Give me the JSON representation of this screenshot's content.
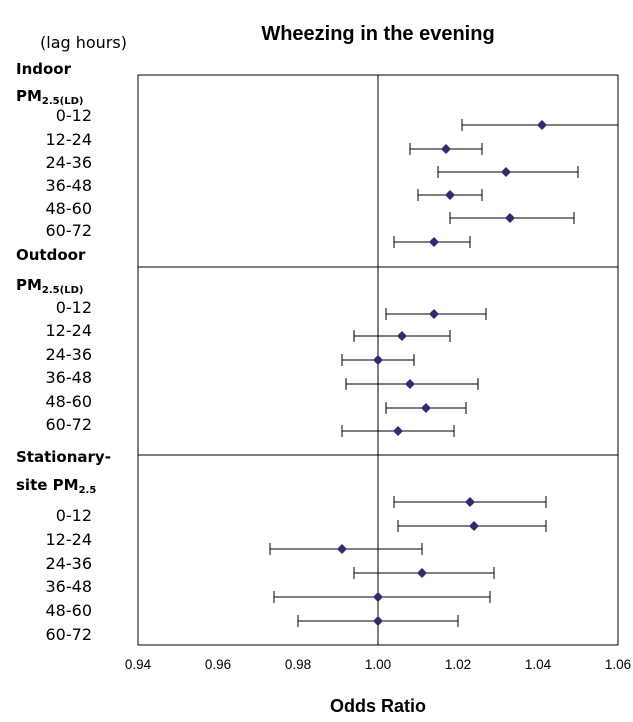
{
  "chart_data": {
    "type": "forest",
    "title": "Wheezing in the evening",
    "xlabel": "Odds Ratio",
    "row_header": "(lag hours)",
    "xlim": [
      0.94,
      1.06
    ],
    "x_ticks": [
      "0.94",
      "0.96",
      "0.98",
      "1.00",
      "1.02",
      "1.04",
      "1.06"
    ],
    "reference_line": 1.0,
    "marker": "diamond",
    "marker_color": "#2e2e6e",
    "groups": [
      {
        "name": "Indoor",
        "sub_main": "PM",
        "sub_sub": "2.5(LD)",
        "rows": [
          {
            "lag": "0-12",
            "or": 1.041,
            "lo": 1.021,
            "hi": 1.06
          },
          {
            "lag": "12-24",
            "or": 1.017,
            "lo": 1.008,
            "hi": 1.026
          },
          {
            "lag": "24-36",
            "or": 1.032,
            "lo": 1.015,
            "hi": 1.05
          },
          {
            "lag": "36-48",
            "or": 1.018,
            "lo": 1.01,
            "hi": 1.026
          },
          {
            "lag": "48-60",
            "or": 1.033,
            "lo": 1.018,
            "hi": 1.049
          },
          {
            "lag": "60-72",
            "or": 1.014,
            "lo": 1.004,
            "hi": 1.023
          }
        ]
      },
      {
        "name": "Outdoor",
        "sub_main": "PM",
        "sub_sub": "2.5(LD)",
        "rows": [
          {
            "lag": "0-12",
            "or": 1.014,
            "lo": 1.002,
            "hi": 1.027
          },
          {
            "lag": "12-24",
            "or": 1.006,
            "lo": 0.994,
            "hi": 1.018
          },
          {
            "lag": "24-36",
            "or": 1.0,
            "lo": 0.991,
            "hi": 1.009
          },
          {
            "lag": "36-48",
            "or": 1.008,
            "lo": 0.992,
            "hi": 1.025
          },
          {
            "lag": "48-60",
            "or": 1.012,
            "lo": 1.002,
            "hi": 1.022
          },
          {
            "lag": "60-72",
            "or": 1.005,
            "lo": 0.991,
            "hi": 1.019
          }
        ]
      },
      {
        "name": "Stationary-",
        "sub_main": "site PM",
        "sub_sub": "2.5",
        "rows": [
          {
            "lag": "0-12",
            "or": 1.023,
            "lo": 1.004,
            "hi": 1.042
          },
          {
            "lag": "12-24",
            "or": 1.024,
            "lo": 1.005,
            "hi": 1.042
          },
          {
            "lag": "24-36",
            "or": 0.991,
            "lo": 0.973,
            "hi": 1.011
          },
          {
            "lag": "36-48",
            "or": 1.011,
            "lo": 0.994,
            "hi": 1.029
          },
          {
            "lag": "48-60",
            "or": 1.0,
            "lo": 0.974,
            "hi": 1.028
          },
          {
            "lag": "60-72",
            "or": 1.0,
            "lo": 0.98,
            "hi": 1.02
          }
        ]
      }
    ]
  }
}
